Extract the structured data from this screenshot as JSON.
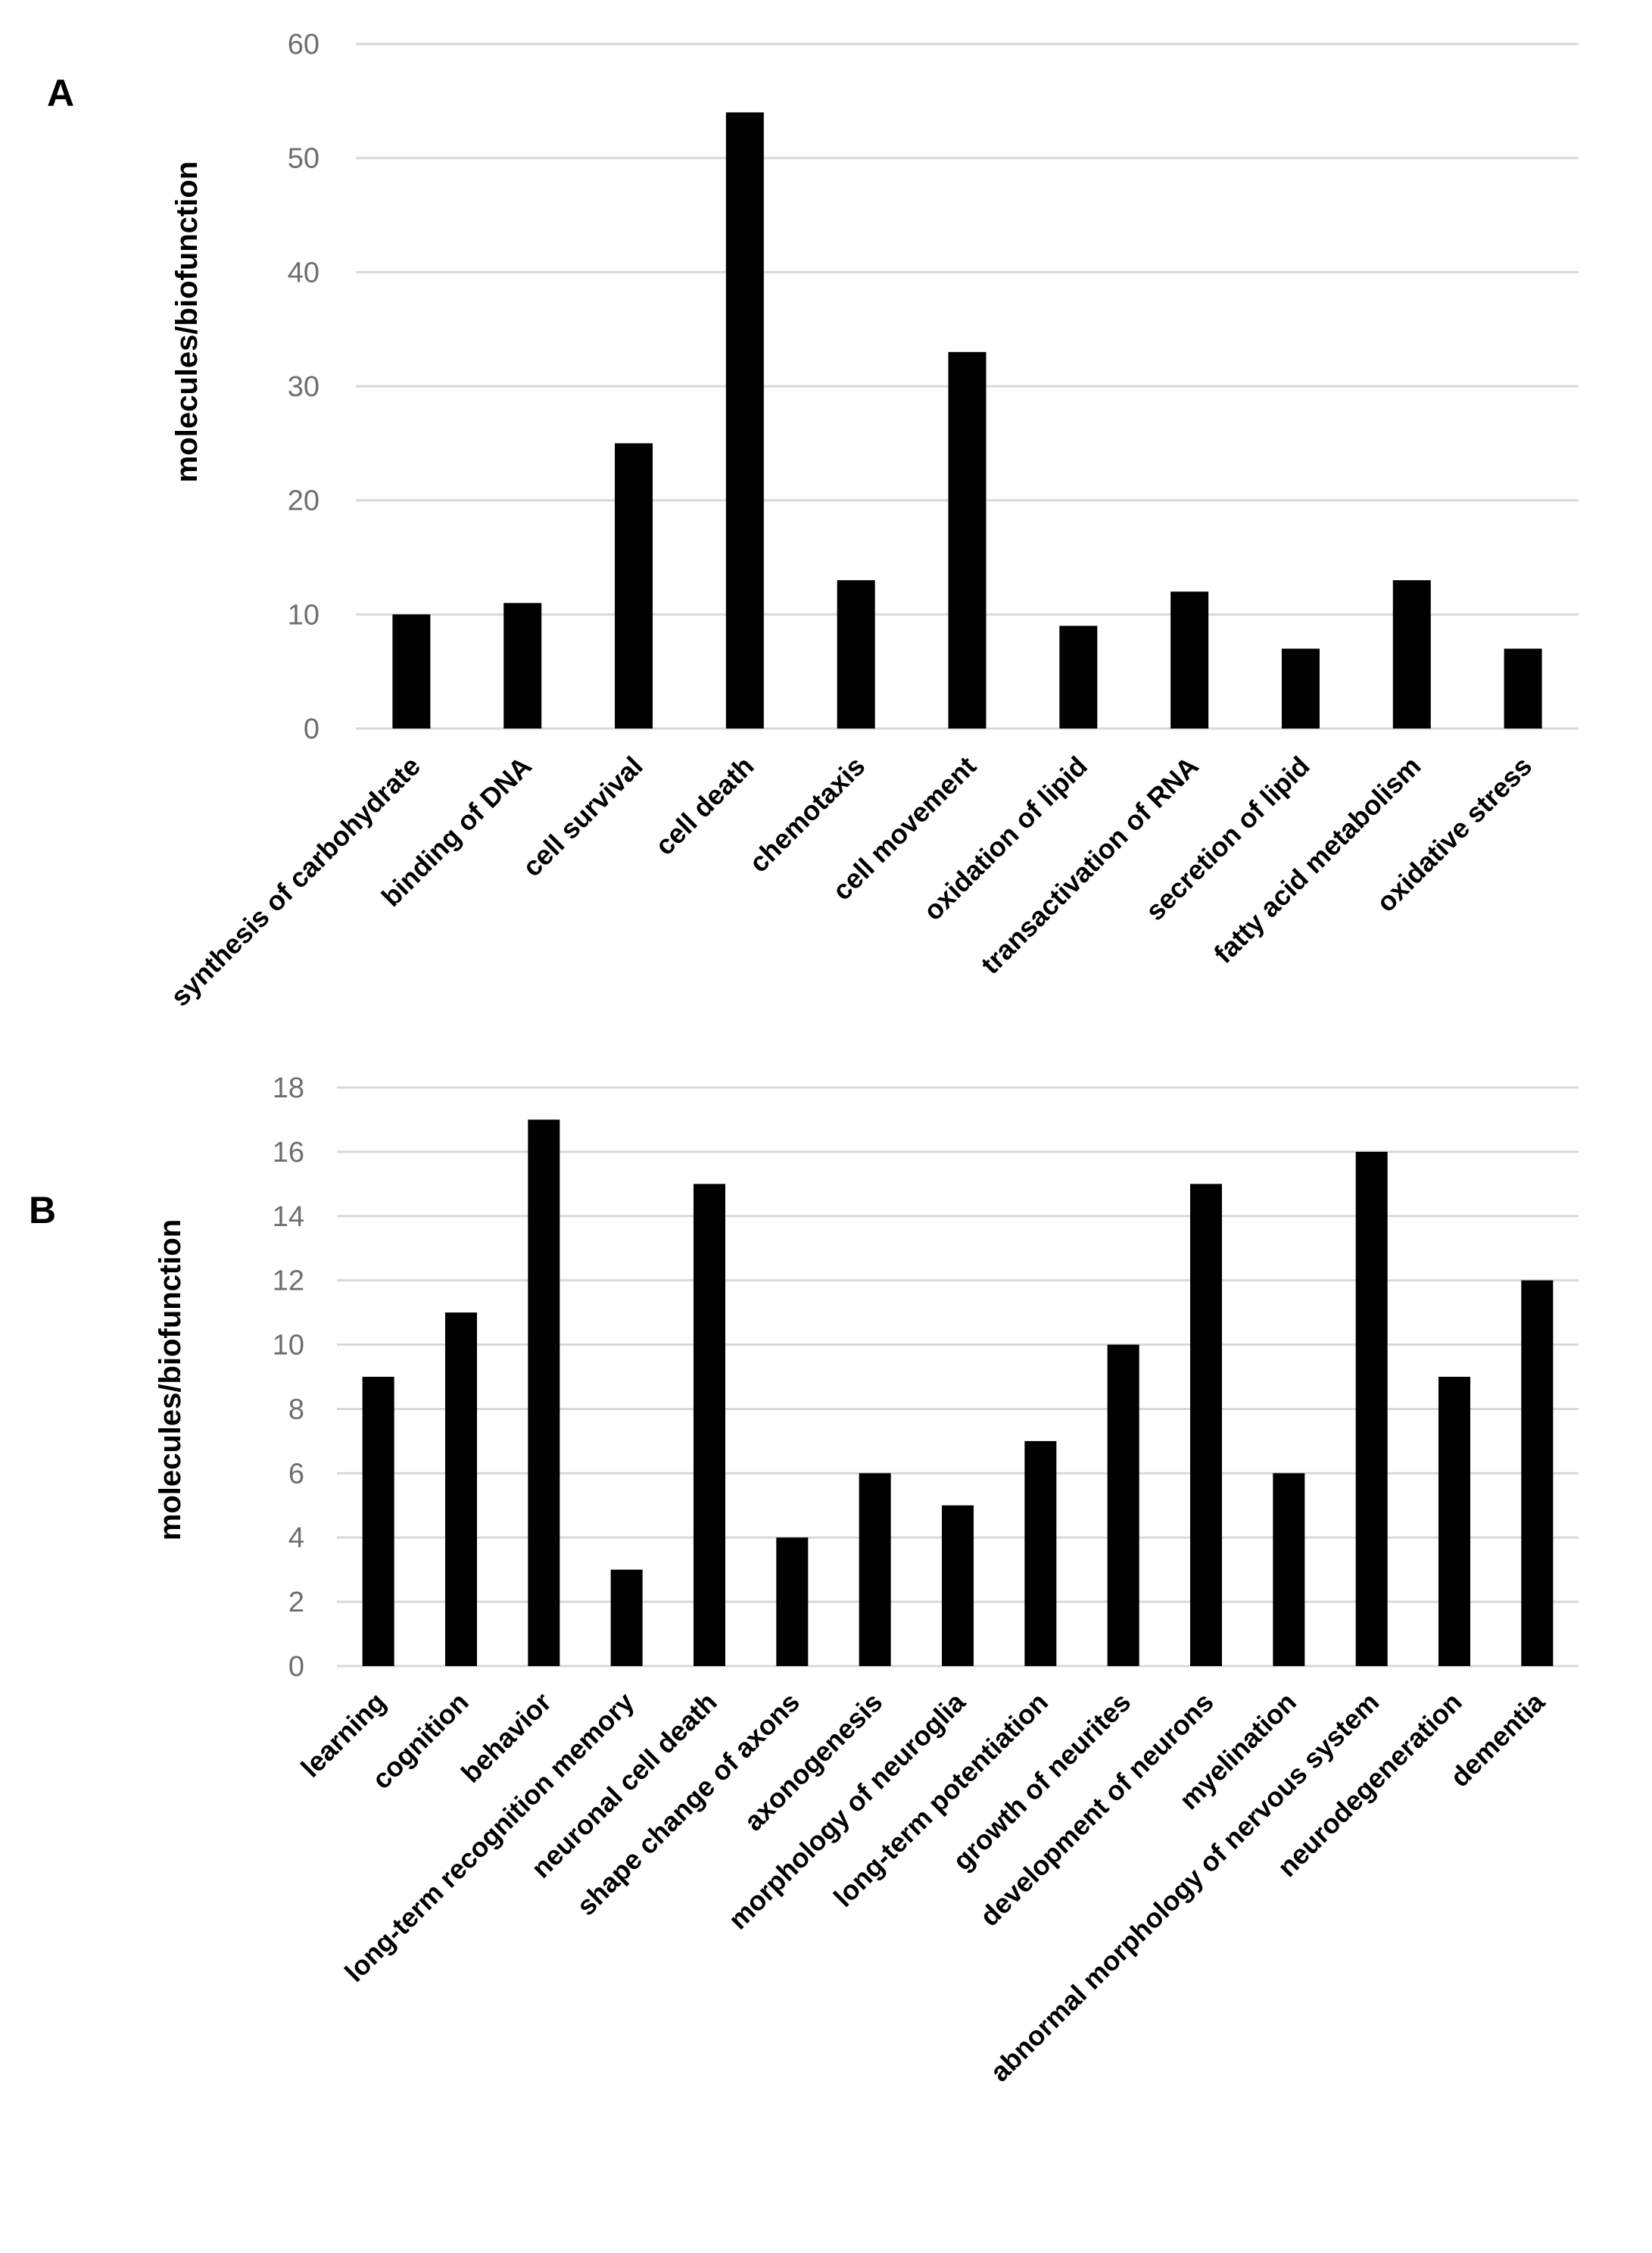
{
  "chart_data": [
    {
      "panel": "A",
      "type": "bar",
      "title": "",
      "xlabel": "",
      "ylabel": "molecules/biofunction",
      "ylim": [
        0,
        60
      ],
      "yticks": [
        0,
        10,
        20,
        30,
        40,
        50,
        60
      ],
      "grid": true,
      "bar_color": "#000000",
      "categories": [
        "synthesis of carbohydrate",
        "binding of DNA",
        "cell survival",
        "cell death",
        "chemotaxis",
        "cell movement",
        "oxidation of lipid",
        "transactivation of RNA",
        "secretion of lipid",
        "fatty acid metabolism",
        "oxidative stress"
      ],
      "values": [
        10,
        11,
        25,
        54,
        13,
        33,
        9,
        12,
        7,
        13,
        7
      ]
    },
    {
      "panel": "B",
      "type": "bar",
      "title": "",
      "xlabel": "",
      "ylabel": "molecules/biofunction",
      "ylim": [
        0,
        18
      ],
      "yticks": [
        0,
        2,
        4,
        6,
        8,
        10,
        12,
        14,
        16,
        18
      ],
      "grid": true,
      "bar_color": "#000000",
      "categories": [
        "learning",
        "cognition",
        "behavior",
        "long-term recognition memory",
        "neuronal cell death",
        "shape change of axons",
        "axonogenesis",
        "morphology of neuroglia",
        "long-term potentiation",
        "growth of neurites",
        "development of neurons",
        "myelination",
        "abnormal morphology of nervous system",
        "neurodegeneration",
        "dementia"
      ],
      "values": [
        9,
        11,
        17,
        3,
        15,
        4,
        6,
        5,
        7,
        10,
        15,
        6,
        16,
        9,
        12
      ]
    }
  ]
}
